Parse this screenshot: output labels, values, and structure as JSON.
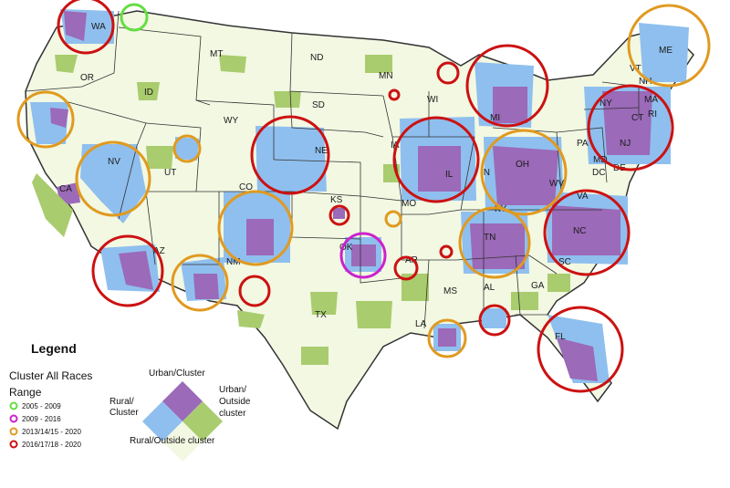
{
  "colors": {
    "rural_outside": "#f2f8e2",
    "rural_cluster": "#8fbfee",
    "urban_cluster": "#9b6ab8",
    "urban_outside": "#a9cc6e",
    "border": "#333333",
    "range_2005_2009": "#66dd44",
    "range_2009_2016": "#cc22cc",
    "range_2013_2020": "#e09a20",
    "range_2016_2020": "#cc1111"
  },
  "legend": {
    "title": "Legend",
    "subtitle": "Cluster All Races",
    "range_heading": "Range",
    "ranges": [
      {
        "label": "2005 - 2009",
        "color_key": "range_2005_2009"
      },
      {
        "label": "2009 - 2016",
        "color_key": "range_2009_2016"
      },
      {
        "label": "2013/14/15 - 2020",
        "color_key": "range_2013_2020"
      },
      {
        "label": "2016/17/18 - 2020",
        "color_key": "range_2016_2020"
      }
    ],
    "diamond": {
      "top": "Urban/Cluster",
      "left_line1": "Rural/",
      "left_line2": "Cluster",
      "right_line1": "Urban/",
      "right_line2": "Outside",
      "right_line3": "cluster",
      "bottom": "Rural/Outside cluster"
    }
  },
  "state_labels": [
    "WA",
    "OR",
    "ID",
    "MT",
    "WY",
    "ND",
    "SD",
    "NE",
    "CA",
    "NV",
    "UT",
    "CO",
    "AZ",
    "NM",
    "KS",
    "OK",
    "TX",
    "MN",
    "IA",
    "WI",
    "IL",
    "MO",
    "AR",
    "LA",
    "MS",
    "MI",
    "IN",
    "OH",
    "KY",
    "TN",
    "AL",
    "GA",
    "FL",
    "SC",
    "NC",
    "VA",
    "WV",
    "PA",
    "NY",
    "VT",
    "NH",
    "ME",
    "MA",
    "RI",
    "CT",
    "NJ",
    "MD",
    "DE",
    "DC"
  ]
}
